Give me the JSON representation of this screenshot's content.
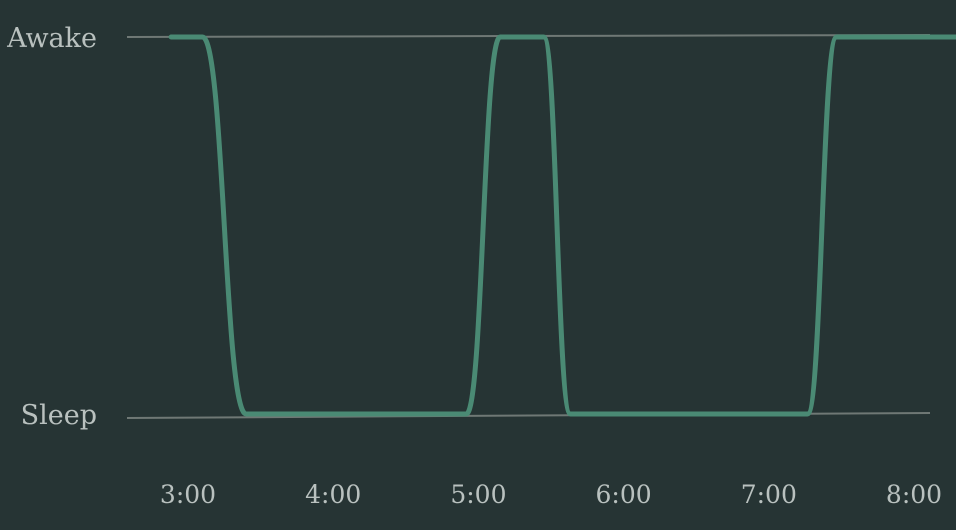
{
  "chart_data": {
    "type": "line",
    "x_ticks": [
      "3:00",
      "4:00",
      "5:00",
      "6:00",
      "7:00",
      "8:00"
    ],
    "y_categories": [
      "Sleep",
      "Awake"
    ],
    "points": [
      {
        "x": "2:53",
        "y": "Awake"
      },
      {
        "x": "3:06",
        "y": "Awake"
      },
      {
        "x": "3:24",
        "y": "Sleep"
      },
      {
        "x": "4:55",
        "y": "Sleep"
      },
      {
        "x": "5:09",
        "y": "Awake"
      },
      {
        "x": "5:27",
        "y": "Awake"
      },
      {
        "x": "5:38",
        "y": "Sleep"
      },
      {
        "x": "7:16",
        "y": "Sleep"
      },
      {
        "x": "7:28",
        "y": "Awake"
      },
      {
        "x": "8:25",
        "y": "Awake"
      }
    ],
    "grid": false,
    "legend": "none",
    "colors": {
      "background": "#263434",
      "line": "#4a8a74",
      "reference_line": "#6f7875",
      "text": "#b9c1bf"
    }
  }
}
